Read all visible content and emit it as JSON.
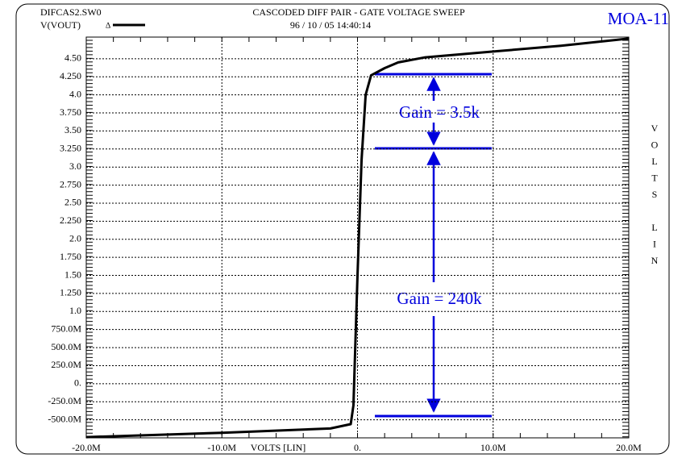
{
  "chart_data": {
    "type": "line",
    "file": "DIFCAS2.SW0",
    "title": "CASCODED DIFF PAIR - GATE VOLTAGE SWEEP",
    "subtitle": "96 / 10 / 05   14:40:14",
    "tag": "MOA-11",
    "x_label": "VOLTS [LIN]",
    "y_label": "VOLTS LIN",
    "legend_marker": "∆",
    "annotations": [
      "Gain = 3.5k",
      "Gain = 240k"
    ],
    "x": [
      -0.02,
      -0.01,
      -0.002,
      -0.0005,
      -0.0003,
      0,
      0.0003,
      0.0006,
      0.001,
      0.002,
      0.003,
      0.005,
      0.01,
      0.015,
      0.02
    ],
    "series": [
      {
        "name": "V(VOUT)",
        "color": "#000000",
        "values": [
          -0.74,
          -0.68,
          -0.62,
          -0.56,
          -0.3,
          1.5,
          3.1,
          4.0,
          4.27,
          4.37,
          4.45,
          4.52,
          4.6,
          4.68,
          4.78
        ]
      }
    ],
    "xlim": [
      -0.02,
      0.02
    ],
    "xticks": [
      {
        "value": -0.02,
        "label": "-20.0M"
      },
      {
        "value": -0.01,
        "label": "-10.0M"
      },
      {
        "value": 0,
        "label": "0."
      },
      {
        "value": 0.01,
        "label": "10.0M"
      },
      {
        "value": 0.02,
        "label": "20.0M"
      }
    ],
    "ylim": [
      -0.75,
      4.8
    ],
    "yticks": [
      {
        "value": 4.5,
        "label": "4.50"
      },
      {
        "value": 4.25,
        "label": "4.250"
      },
      {
        "value": 4.0,
        "label": "4.0"
      },
      {
        "value": 3.75,
        "label": "3.750"
      },
      {
        "value": 3.5,
        "label": "3.50"
      },
      {
        "value": 3.25,
        "label": "3.250"
      },
      {
        "value": 3.0,
        "label": "3.0"
      },
      {
        "value": 2.75,
        "label": "2.750"
      },
      {
        "value": 2.5,
        "label": "2.50"
      },
      {
        "value": 2.25,
        "label": "2.250"
      },
      {
        "value": 2.0,
        "label": "2.0"
      },
      {
        "value": 1.75,
        "label": "1.750"
      },
      {
        "value": 1.5,
        "label": "1.50"
      },
      {
        "value": 1.25,
        "label": "1.250"
      },
      {
        "value": 1.0,
        "label": "1.0"
      },
      {
        "value": 0.75,
        "label": "750.0M"
      },
      {
        "value": 0.5,
        "label": "500.0M"
      },
      {
        "value": 0.25,
        "label": "250.0M"
      },
      {
        "value": 0,
        "label": "0."
      },
      {
        "value": -0.25,
        "label": "-250.0M"
      },
      {
        "value": -0.5,
        "label": "-500.0M"
      }
    ],
    "grid": true
  }
}
